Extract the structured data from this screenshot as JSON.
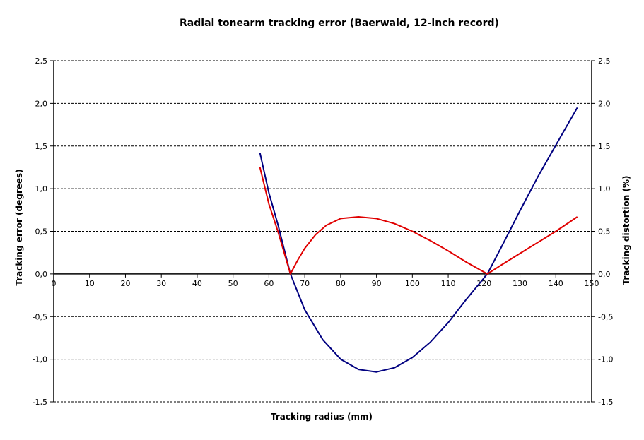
{
  "chart_data": {
    "type": "line",
    "title": "Radial tonearm tracking error (Baerwald, 12-inch record)",
    "xlabel": "Tracking radius (mm)",
    "ylabel": "Tracking error (degrees)",
    "y2label": "Tracking distortion (%)",
    "xlim": [
      0,
      150
    ],
    "ylim": [
      -1.5,
      2.5
    ],
    "y2lim": [
      -1.5,
      2.5
    ],
    "x_ticks": [
      "0",
      "10",
      "20",
      "30",
      "40",
      "50",
      "60",
      "70",
      "80",
      "90",
      "100",
      "110",
      "120",
      "130",
      "140",
      "150"
    ],
    "y_ticks": [
      "2,5",
      "2,0",
      "1,5",
      "1,0",
      "0,5",
      "0,0",
      "-0,5",
      "-1,0",
      "-1,5"
    ],
    "y2_ticks": [
      "2,5",
      "2,0",
      "1,5",
      "1,0",
      "0,5",
      "0,0",
      "-0,5",
      "-1,0",
      "-1,5"
    ],
    "grid": "horizontal-dashed",
    "series": [
      {
        "color": "#000080",
        "axis": "left",
        "x": [
          57.5,
          60,
          62.5,
          66,
          70,
          75,
          80,
          85,
          90,
          95,
          100,
          105,
          110,
          115,
          120.9,
          125,
          130,
          135,
          140,
          146
        ],
        "y": [
          1.42,
          0.95,
          0.58,
          0.0,
          -0.42,
          -0.77,
          -1.0,
          -1.12,
          -1.15,
          -1.1,
          -0.98,
          -0.8,
          -0.57,
          -0.3,
          0.0,
          0.33,
          0.74,
          1.14,
          1.51,
          1.95
        ]
      },
      {
        "color": "#e00000",
        "axis": "right",
        "x": [
          57.5,
          60,
          62.5,
          66,
          68,
          70,
          73,
          76,
          80,
          85,
          90,
          95,
          100,
          105,
          110,
          115,
          120.9,
          125,
          130,
          135,
          140,
          146
        ],
        "y": [
          1.25,
          0.82,
          0.5,
          0.0,
          0.16,
          0.3,
          0.46,
          0.57,
          0.65,
          0.67,
          0.65,
          0.59,
          0.5,
          0.39,
          0.27,
          0.14,
          0.0,
          0.11,
          0.24,
          0.37,
          0.5,
          0.67
        ]
      }
    ]
  }
}
